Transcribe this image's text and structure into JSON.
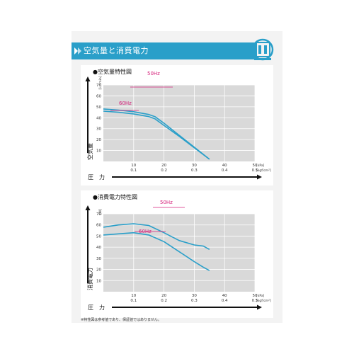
{
  "header": {
    "title": "空気量と消費電力",
    "accent_color": "#2a9fc9",
    "icon": "blower-pump-icon"
  },
  "charts": [
    {
      "panel_title": "●空気量特性図",
      "ylabel": "空気量",
      "yunit": "[L／min]",
      "xlabel": "圧　力",
      "xunit_primary": "[kPa]",
      "xunit_secondary": "[kgf/cm²]",
      "xtick_secondary": [
        "0.1",
        "0.2",
        "0.3",
        "0.4",
        "0.5"
      ]
    },
    {
      "panel_title": "●消費電力特性図",
      "ylabel": "消費電力",
      "yunit": "[W]",
      "xlabel": "圧　力",
      "xunit_primary": "[kPa]",
      "xunit_secondary": "[kgf/cm²]",
      "xtick_secondary": [
        "0.1",
        "0.2",
        "0.3",
        "0.4",
        "0.5"
      ]
    }
  ],
  "chart_data": [
    {
      "type": "line",
      "xlim": [
        0,
        50
      ],
      "ylim": [
        0,
        70
      ],
      "xticks": [
        10,
        20,
        30,
        40,
        50
      ],
      "yticks": [
        10,
        20,
        30,
        40,
        50,
        60,
        70
      ],
      "grid": true,
      "series": [
        {
          "name": "50Hz",
          "color": "#2a9fc9",
          "x": [
            0,
            5,
            10,
            15,
            17,
            20,
            25,
            30,
            35
          ],
          "y": [
            48,
            47,
            45.5,
            43,
            41,
            35,
            24,
            13,
            2
          ]
        },
        {
          "name": "60Hz",
          "color": "#2a9fc9",
          "x": [
            0,
            5,
            10,
            15,
            17,
            20,
            25,
            30,
            35
          ],
          "y": [
            46,
            45,
            43.5,
            41,
            39,
            33,
            23,
            12.5,
            2
          ]
        }
      ],
      "annotations": [
        {
          "text": "50Hz",
          "color": "#d6217b"
        },
        {
          "text": "60Hz",
          "color": "#d6217b"
        }
      ]
    },
    {
      "type": "line",
      "xlim": [
        0,
        50
      ],
      "ylim": [
        0,
        70
      ],
      "xticks": [
        10,
        20,
        30,
        40,
        50
      ],
      "yticks": [
        10,
        20,
        30,
        40,
        50,
        60,
        70
      ],
      "grid": true,
      "series": [
        {
          "name": "50Hz",
          "color": "#2a9fc9",
          "x": [
            0,
            5,
            10,
            15,
            20,
            25,
            30,
            33,
            35
          ],
          "y": [
            58,
            60,
            61,
            59.5,
            53,
            46,
            42,
            41,
            38
          ]
        },
        {
          "name": "60Hz",
          "color": "#2a9fc9",
          "x": [
            0,
            5,
            10,
            15,
            20,
            25,
            30,
            33,
            35
          ],
          "y": [
            51,
            52,
            53,
            51,
            45,
            36,
            27,
            22,
            19
          ]
        }
      ],
      "annotations": [
        {
          "text": "50Hz",
          "color": "#d6217b"
        },
        {
          "text": "60Hz",
          "color": "#d6217b"
        }
      ]
    }
  ],
  "footnote": "※特性図は参考値であり、保証値ではありません。"
}
